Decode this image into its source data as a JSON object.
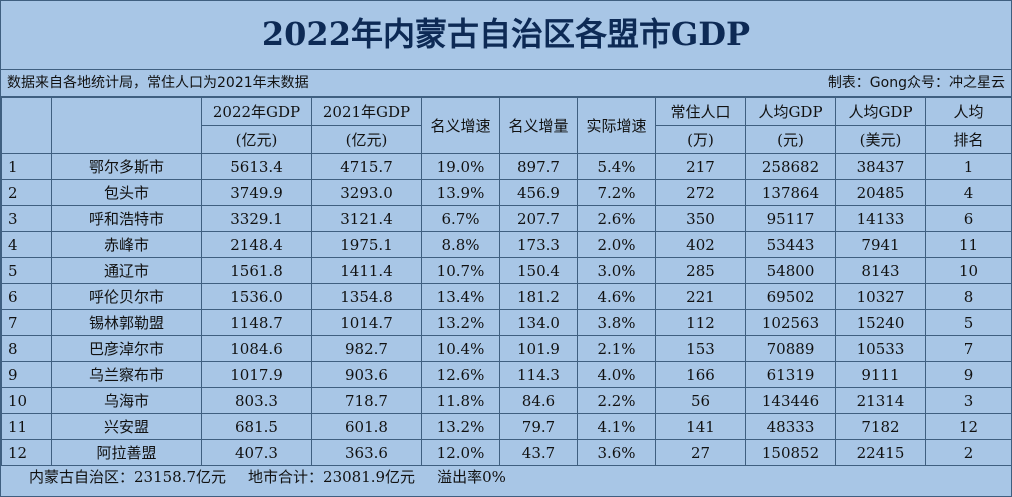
{
  "title": "2022年内蒙古自治区各盟市GDP",
  "source_note": "数据来自各地统计局，常住人口为2021年末数据",
  "credit": "制表：Gong众号：冲之星云",
  "headers": {
    "gdp2022": [
      "2022年GDP",
      "(亿元)"
    ],
    "gdp2021": [
      "2021年GDP",
      "(亿元)"
    ],
    "nominal_growth": "名义增速",
    "nominal_increase": "名义增量",
    "real_growth": "实际增速",
    "population": [
      "常住人口",
      "(万)"
    ],
    "per_capita_cny": [
      "人均GDP",
      "(元)"
    ],
    "per_capita_usd": [
      "人均GDP",
      "(美元)"
    ],
    "per_capita_rank": [
      "人均",
      "排名"
    ]
  },
  "rows": [
    [
      "1",
      "鄂尔多斯市",
      "5613.4",
      "4715.7",
      "19.0%",
      "897.7",
      "5.4%",
      "217",
      "258682",
      "38437",
      "1"
    ],
    [
      "2",
      "包头市",
      "3749.9",
      "3293.0",
      "13.9%",
      "456.9",
      "7.2%",
      "272",
      "137864",
      "20485",
      "4"
    ],
    [
      "3",
      "呼和浩特市",
      "3329.1",
      "3121.4",
      "6.7%",
      "207.7",
      "2.6%",
      "350",
      "95117",
      "14133",
      "6"
    ],
    [
      "4",
      "赤峰市",
      "2148.4",
      "1975.1",
      "8.8%",
      "173.3",
      "2.0%",
      "402",
      "53443",
      "7941",
      "11"
    ],
    [
      "5",
      "通辽市",
      "1561.8",
      "1411.4",
      "10.7%",
      "150.4",
      "3.0%",
      "285",
      "54800",
      "8143",
      "10"
    ],
    [
      "6",
      "呼伦贝尔市",
      "1536.0",
      "1354.8",
      "13.4%",
      "181.2",
      "4.6%",
      "221",
      "69502",
      "10327",
      "8"
    ],
    [
      "7",
      "锡林郭勒盟",
      "1148.7",
      "1014.7",
      "13.2%",
      "134.0",
      "3.8%",
      "112",
      "102563",
      "15240",
      "5"
    ],
    [
      "8",
      "巴彦淖尔市",
      "1084.6",
      "982.7",
      "10.4%",
      "101.9",
      "2.1%",
      "153",
      "70889",
      "10533",
      "7"
    ],
    [
      "9",
      "乌兰察布市",
      "1017.9",
      "903.6",
      "12.6%",
      "114.3",
      "4.0%",
      "166",
      "61319",
      "9111",
      "9"
    ],
    [
      "10",
      "乌海市",
      "803.3",
      "718.7",
      "11.8%",
      "84.6",
      "2.2%",
      "56",
      "143446",
      "21314",
      "3"
    ],
    [
      "11",
      "兴安盟",
      "681.5",
      "601.8",
      "13.2%",
      "79.7",
      "4.1%",
      "141",
      "48333",
      "7182",
      "12"
    ],
    [
      "12",
      "阿拉善盟",
      "407.3",
      "363.6",
      "12.0%",
      "43.7",
      "3.6%",
      "27",
      "150852",
      "22415",
      "2"
    ]
  ],
  "footer": {
    "total_region": "内蒙古自治区：23158.7亿元",
    "sum_cities": "地市合计：23081.9亿元",
    "overflow": "溢出率0%"
  }
}
